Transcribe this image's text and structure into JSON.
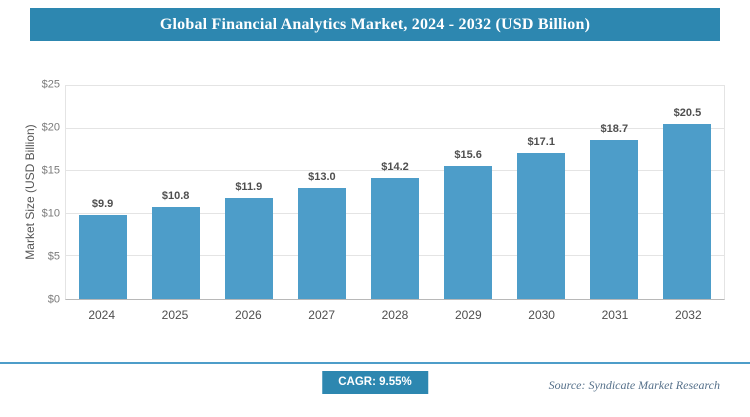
{
  "title": "Global Financial Analytics Market, 2024 - 2032 (USD Billion)",
  "chart_data": {
    "type": "bar",
    "title": "Global Financial Analytics Market, 2024 - 2032 (USD Billion)",
    "categories": [
      "2024",
      "2025",
      "2026",
      "2027",
      "2028",
      "2029",
      "2030",
      "2031",
      "2032"
    ],
    "values": [
      9.9,
      10.8,
      11.9,
      13.0,
      14.2,
      15.6,
      17.1,
      18.7,
      20.5
    ],
    "value_labels": [
      "$9.9",
      "$10.8",
      "$11.9",
      "$13.0",
      "$14.2",
      "$15.6",
      "$17.1",
      "$18.7",
      "$20.5"
    ],
    "xlabel": "",
    "ylabel": "Market Size (USD Billion)",
    "ylim": [
      0,
      25
    ],
    "yticks": [
      0,
      5,
      10,
      15,
      20,
      25
    ],
    "ytick_labels": [
      "$0",
      "$5",
      "$10",
      "$15",
      "$20",
      "$25"
    ],
    "grid": true,
    "legend": "none",
    "bar_color": "#4d9dc9"
  },
  "footer": {
    "cagr_label": "CAGR: 9.55%",
    "source": "Source: Syndicate Market Research"
  },
  "colors": {
    "header_bg": "#2d87b0",
    "accent_line": "#4d9dc9",
    "bar": "#4d9dc9"
  }
}
